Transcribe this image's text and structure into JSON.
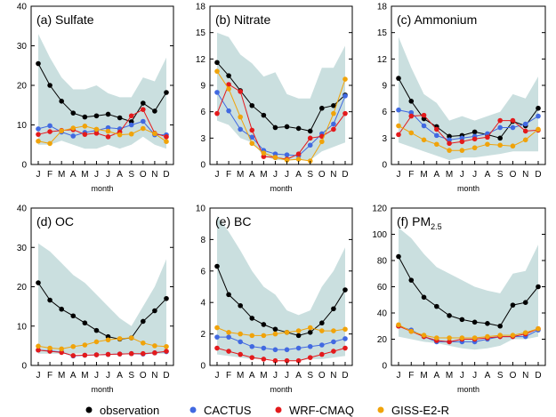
{
  "figure": {
    "legend": [
      {
        "name": "observation",
        "color": "#000000"
      },
      {
        "name": "CACTUS",
        "color": "#4169e1"
      },
      {
        "name": "WRF-CMAQ",
        "color": "#e31a1c"
      },
      {
        "name": "GISS-E2-R",
        "color": "#f0a30a"
      }
    ],
    "shade_color": "#cadfdf"
  },
  "chart_data": [
    {
      "type": "line",
      "title": "(a) Sulfate",
      "title_main": "(a) Sulfate",
      "title_sub": "",
      "xlabel": "month",
      "ylabel": "",
      "categories": [
        "J",
        "F",
        "M",
        "A",
        "M",
        "J",
        "J",
        "A",
        "S",
        "O",
        "N",
        "D"
      ],
      "ylim": [
        0,
        40
      ],
      "yticks": [
        "0",
        "10",
        "20",
        "30",
        "40"
      ],
      "band": {
        "upper": [
          33,
          27,
          22,
          19,
          19,
          20,
          18,
          17,
          17,
          22,
          21,
          27
        ],
        "lower": [
          5,
          5,
          6,
          5,
          4,
          4,
          5,
          4,
          5,
          7,
          5,
          4
        ]
      },
      "series": [
        {
          "name": "observation",
          "values": [
            25.5,
            20,
            16,
            13,
            12,
            12.3,
            12.7,
            11.8,
            10.8,
            15.5,
            13.5,
            18.2
          ]
        },
        {
          "name": "CACTUS",
          "values": [
            9,
            9.8,
            8.2,
            7.2,
            8.1,
            8.6,
            9.3,
            9,
            10,
            10.9,
            7.5,
            7.5
          ]
        },
        {
          "name": "WRF-CMAQ",
          "values": [
            7.6,
            8.3,
            8.6,
            8.8,
            7.6,
            7.9,
            7,
            8.2,
            12.3,
            13.9,
            7.9,
            7
          ]
        },
        {
          "name": "GISS-E2-R",
          "values": [
            5.9,
            5.3,
            8.5,
            9.2,
            9.7,
            8.9,
            8.4,
            7.5,
            7.7,
            9.1,
            7.8,
            5.8
          ]
        }
      ]
    },
    {
      "type": "line",
      "title": "(b) Nitrate",
      "title_main": "(b) Nitrate",
      "title_sub": "",
      "xlabel": "",
      "ylabel": "",
      "categories": [
        "J",
        "F",
        "M",
        "A",
        "M",
        "J",
        "J",
        "A",
        "S",
        "O",
        "N",
        "D"
      ],
      "ylim": [
        0,
        18
      ],
      "yticks": [
        "0",
        "3",
        "6",
        "9",
        "12",
        "15",
        "18"
      ],
      "band": {
        "upper": [
          15,
          14.5,
          12.5,
          11.5,
          10,
          10.5,
          8,
          7.5,
          7.5,
          11,
          11,
          13.5
        ],
        "lower": [
          5,
          4.5,
          3,
          2.5,
          1,
          0.5,
          0.5,
          0.5,
          0.5,
          1.5,
          2,
          2.5
        ]
      },
      "series": [
        {
          "name": "observation",
          "values": [
            11.6,
            10.1,
            8.4,
            6.7,
            5.6,
            4.2,
            4.3,
            4.1,
            3.8,
            6.4,
            6.7,
            7.9
          ]
        },
        {
          "name": "CACTUS",
          "values": [
            8.2,
            6.1,
            4,
            3.1,
            1.6,
            1.2,
            1.1,
            1,
            2.2,
            3.5,
            4.6,
            7.8
          ]
        },
        {
          "name": "WRF-CMAQ",
          "values": [
            5.8,
            9.1,
            8.3,
            3.9,
            0.9,
            0.8,
            0.6,
            1.2,
            3,
            3.2,
            4,
            5.8
          ]
        },
        {
          "name": "GISS-E2-R",
          "values": [
            10.6,
            8.6,
            5.4,
            2.4,
            1.3,
            0.8,
            0.5,
            0.6,
            0.4,
            2.6,
            5.8,
            9.7
          ]
        }
      ]
    },
    {
      "type": "line",
      "title": "(c) Ammonium",
      "title_main": "(c) Ammonium",
      "title_sub": "",
      "xlabel": "",
      "ylabel": "",
      "categories": [
        "J",
        "F",
        "M",
        "A",
        "M",
        "J",
        "J",
        "A",
        "S",
        "O",
        "N",
        "D"
      ],
      "ylim": [
        0,
        18
      ],
      "yticks": [
        "0",
        "3",
        "6",
        "9",
        "12",
        "15",
        "18"
      ],
      "band": {
        "upper": [
          14.5,
          11,
          8,
          7,
          5,
          5.5,
          5,
          5.5,
          6,
          8,
          7.5,
          10
        ],
        "lower": [
          2.5,
          2,
          1.5,
          1,
          0.5,
          0.8,
          0.8,
          1,
          1.2,
          1.5,
          1.5,
          1.5
        ]
      },
      "series": [
        {
          "name": "observation",
          "values": [
            9.8,
            7.2,
            5.2,
            4.3,
            3.2,
            3.3,
            3.7,
            3.4,
            3,
            4.9,
            4.4,
            6.4
          ]
        },
        {
          "name": "CACTUS",
          "values": [
            6.2,
            5.9,
            4.4,
            3.3,
            2.8,
            3,
            3.2,
            3.5,
            4.2,
            4.2,
            4.6,
            5.5
          ]
        },
        {
          "name": "WRF-CMAQ",
          "values": [
            3.4,
            5.5,
            5.6,
            4,
            2.4,
            2.6,
            2.9,
            3.1,
            5,
            5,
            3.8,
            3.9
          ]
        },
        {
          "name": "GISS-E2-R",
          "values": [
            4.4,
            3.6,
            2.8,
            2.3,
            1.6,
            1.6,
            1.9,
            2.3,
            2.2,
            2.1,
            2.8,
            4
          ]
        }
      ]
    },
    {
      "type": "line",
      "title": "(d) OC",
      "title_main": "(d) OC",
      "title_sub": "",
      "xlabel": "",
      "ylabel": "",
      "categories": [
        "J",
        "F",
        "M",
        "A",
        "M",
        "J",
        "J",
        "A",
        "S",
        "O",
        "N",
        "D"
      ],
      "ylim": [
        0,
        40
      ],
      "yticks": [
        "0",
        "10",
        "20",
        "30",
        "40"
      ],
      "band": {
        "upper": [
          31,
          29,
          26,
          23,
          21,
          18,
          15,
          12,
          10,
          15,
          20,
          27
        ],
        "lower": [
          3,
          3,
          3,
          3,
          3,
          3,
          3,
          3,
          3,
          3,
          3,
          3
        ]
      },
      "series": [
        {
          "name": "observation",
          "values": [
            21,
            16.6,
            14.3,
            12.6,
            10.8,
            8.9,
            7.3,
            6.7,
            7,
            11.2,
            13.9,
            17
          ]
        },
        {
          "name": "CACTUS",
          "values": [
            3.9,
            3.7,
            3.4,
            2.4,
            2.6,
            2.7,
            2.8,
            2.9,
            3,
            2.9,
            3.2,
            3.5
          ]
        },
        {
          "name": "WRF-CMAQ",
          "values": [
            3.9,
            3.6,
            3.3,
            2.5,
            2.6,
            2.7,
            2.8,
            2.9,
            3,
            3,
            3.2,
            3.6
          ]
        },
        {
          "name": "GISS-E2-R",
          "values": [
            4.9,
            4.4,
            4.2,
            4.8,
            5.2,
            6,
            6.5,
            6.8,
            7,
            5.7,
            5,
            4.8
          ]
        }
      ]
    },
    {
      "type": "line",
      "title": "(e) BC",
      "title_main": "(e) BC",
      "title_sub": "",
      "xlabel": "",
      "ylabel": "",
      "categories": [
        "J",
        "F",
        "M",
        "A",
        "M",
        "J",
        "J",
        "A",
        "S",
        "O",
        "N",
        "D"
      ],
      "ylim": [
        0,
        10
      ],
      "yticks": [
        "0",
        "2",
        "4",
        "6",
        "8",
        "10"
      ],
      "band": {
        "upper": [
          9.5,
          8.5,
          7.3,
          6,
          5,
          4.5,
          3.5,
          3.2,
          3.5,
          5,
          6,
          7.5
        ],
        "lower": [
          0.7,
          0.6,
          0.5,
          0.4,
          0.4,
          0.4,
          0.3,
          0.3,
          0.4,
          0.4,
          0.5,
          0.6
        ]
      },
      "series": [
        {
          "name": "observation",
          "values": [
            6.3,
            4.5,
            3.8,
            3,
            2.6,
            2.3,
            2.1,
            1.9,
            2.1,
            2.7,
            3.6,
            4.8
          ]
        },
        {
          "name": "CACTUS",
          "values": [
            1.8,
            1.8,
            1.5,
            1.2,
            1.1,
            1,
            1,
            1.1,
            1.2,
            1.3,
            1.5,
            1.7
          ]
        },
        {
          "name": "WRF-CMAQ",
          "values": [
            1.1,
            0.9,
            0.7,
            0.5,
            0.4,
            0.3,
            0.3,
            0.3,
            0.5,
            0.7,
            0.9,
            1.1
          ]
        },
        {
          "name": "GISS-E2-R",
          "values": [
            2.4,
            2.1,
            2,
            1.9,
            1.9,
            2,
            2.1,
            2.2,
            2.4,
            2.2,
            2.2,
            2.3
          ]
        }
      ]
    },
    {
      "type": "line",
      "title": "(f) PM2.5",
      "title_main": "(f) PM",
      "title_sub": "2.5",
      "xlabel": "",
      "ylabel": "",
      "categories": [
        "J",
        "F",
        "M",
        "A",
        "M",
        "J",
        "J",
        "A",
        "S",
        "O",
        "N",
        "D"
      ],
      "ylim": [
        0,
        120
      ],
      "yticks": [
        "0",
        "20",
        "40",
        "60",
        "80",
        "100",
        "120"
      ],
      "band": {
        "upper": [
          105,
          97,
          85,
          75,
          70,
          65,
          60,
          57,
          55,
          70,
          72,
          92
        ],
        "lower": [
          22,
          20,
          18,
          17,
          15,
          13,
          12,
          13,
          15,
          20,
          20,
          22
        ]
      },
      "series": [
        {
          "name": "observation",
          "values": [
            83,
            65,
            52,
            45,
            38,
            35,
            33,
            32,
            30,
            46,
            48,
            60
          ]
        },
        {
          "name": "CACTUS",
          "values": [
            30,
            27,
            22,
            18,
            18,
            18,
            18,
            20,
            22,
            22,
            22,
            27
          ]
        },
        {
          "name": "WRF-CMAQ",
          "values": [
            30,
            26,
            22,
            19,
            18,
            20,
            20,
            21,
            22,
            22,
            24,
            28
          ]
        },
        {
          "name": "GISS-E2-R",
          "values": [
            31,
            26,
            23,
            21,
            21,
            21,
            21,
            22,
            23,
            23,
            25,
            28
          ]
        }
      ]
    }
  ]
}
